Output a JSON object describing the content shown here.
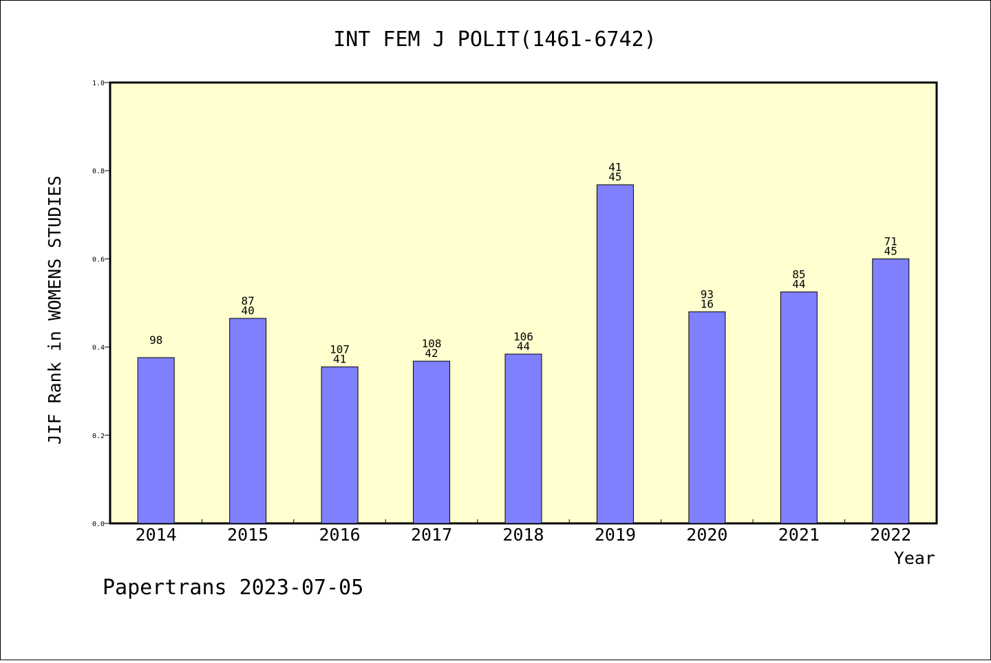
{
  "chart_data": {
    "type": "bar",
    "title": "INT FEM J POLIT(1461-6742)",
    "ylabel": "JIF Rank in WOMENS STUDIES",
    "xlabel": "Year",
    "ylim": [
      0,
      1.0
    ],
    "yticks": [
      "0.0",
      "0.2",
      "0.4",
      "0.6",
      "0.8",
      "1.0"
    ],
    "categories": [
      "2014",
      "2015",
      "2016",
      "2017",
      "2018",
      "2019",
      "2020",
      "2021",
      "2022"
    ],
    "values": [
      0.376,
      0.465,
      0.355,
      0.368,
      0.384,
      0.768,
      0.48,
      0.525,
      0.6
    ],
    "bar_labels": [
      [
        "98"
      ],
      [
        "87",
        "40"
      ],
      [
        "107",
        "41"
      ],
      [
        "108",
        "42"
      ],
      [
        "106",
        "44"
      ],
      [
        "41",
        "45"
      ],
      [
        "93",
        "16"
      ],
      [
        "85",
        "44"
      ],
      [
        "71",
        "45"
      ]
    ],
    "colors": {
      "plot_background": "#ffffd0",
      "bar": "#8080ff",
      "border": "#000000"
    },
    "grid": false
  },
  "footer": {
    "text": "Papertrans 2023-07-05"
  }
}
